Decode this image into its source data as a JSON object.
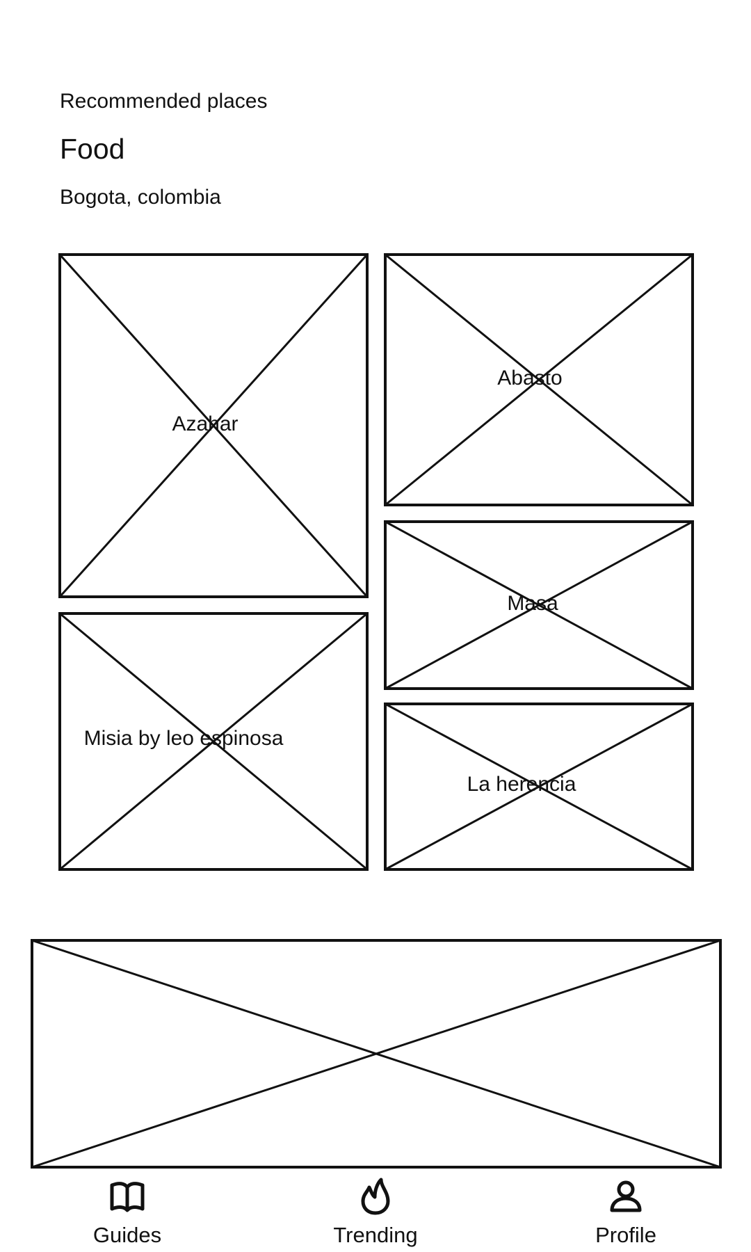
{
  "header": {
    "overline": "Recommended places",
    "title": "Food",
    "location": "Bogota, colombia"
  },
  "places": [
    {
      "name": "Azahar"
    },
    {
      "name": "Abasto"
    },
    {
      "name": "Masa"
    },
    {
      "name": "Misia by leo espinosa"
    },
    {
      "name": "La herencia"
    }
  ],
  "banner": {},
  "nav": {
    "items": [
      {
        "label": "Guides",
        "icon": "book-icon"
      },
      {
        "label": "Trending",
        "icon": "flame-icon"
      },
      {
        "label": "Profile",
        "icon": "person-icon"
      }
    ]
  },
  "colors": {
    "stroke": "#111111",
    "background": "#ffffff"
  }
}
